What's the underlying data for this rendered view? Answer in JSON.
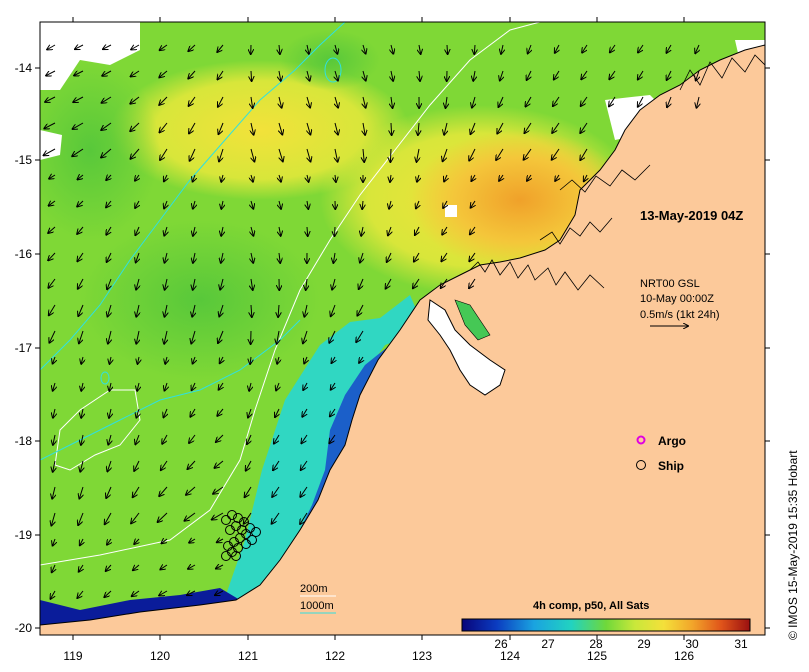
{
  "map": {
    "title_time": "13-May-2019 04Z",
    "x_ticks": [
      "119",
      "120",
      "121",
      "122",
      "123",
      "124",
      "125",
      "126"
    ],
    "y_ticks": [
      "-14",
      "-15",
      "-16",
      "-17",
      "-18",
      "-19",
      "-20"
    ],
    "current_info": {
      "line1": "NRT00 GSL",
      "line2": "10-May 00:00Z",
      "line3": "0.5m/s (1kt 24h)"
    },
    "legend": {
      "argo": "Argo",
      "ship": "Ship",
      "contour_200": "200m",
      "contour_1000": "1000m"
    },
    "colorbar": {
      "title": "4h comp, p50, All Sats",
      "ticks": [
        "26",
        "27",
        "28",
        "29",
        "30",
        "31"
      ]
    },
    "credit": "© IMOS 15-May-2019 15:35 Hobart",
    "colors": {
      "land": "#fcc99a",
      "ocean_green": "#7fd836",
      "ocean_yellow": "#f2e53a",
      "ocean_orange": "#f0a727",
      "ocean_cyan": "#30d7c2",
      "ocean_blue": "#1b5fc9",
      "ocean_navy": "#0a1c9a",
      "contour_200": "#ffffff",
      "contour_1000": "#30e0e0",
      "argo": "#e000e0"
    }
  }
}
